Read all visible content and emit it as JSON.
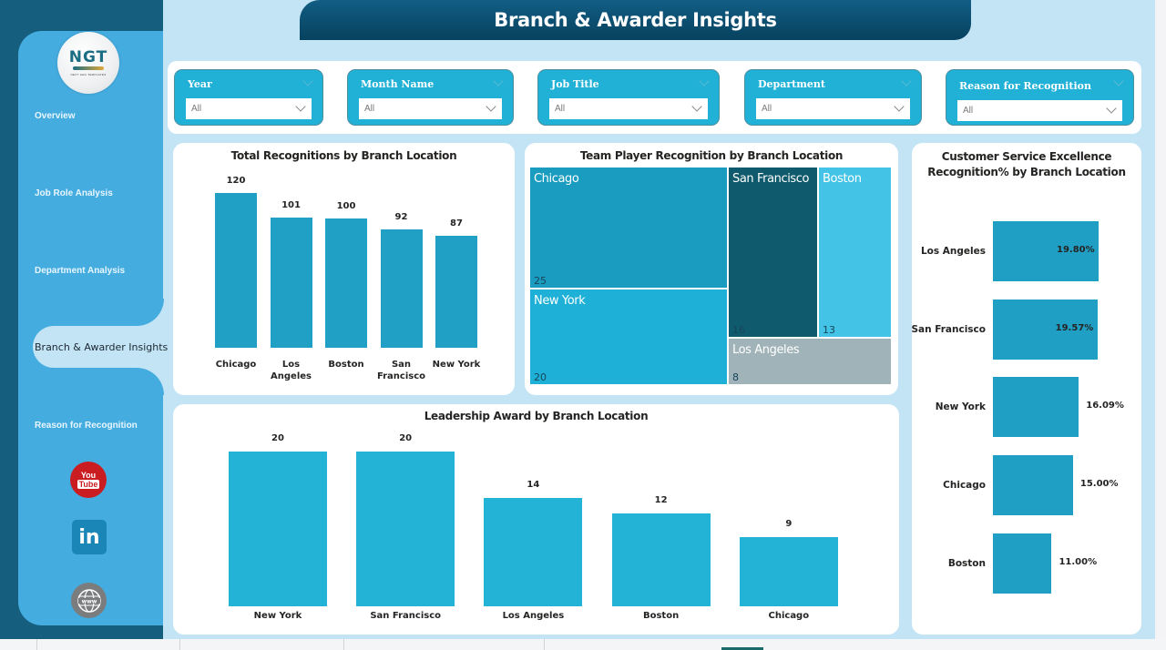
{
  "header": {
    "title": "Branch & Awarder Insights"
  },
  "sidebar": {
    "logo": {
      "text": "NGT",
      "tagline": "NEXT GEN TEMPLATES"
    },
    "items": [
      {
        "label": "Overview",
        "active": false
      },
      {
        "label": "Job Role Analysis",
        "active": false
      },
      {
        "label": "Department Analysis",
        "active": false
      },
      {
        "label": "Branch & Awarder Insights",
        "active": true
      },
      {
        "label": "Reason for Recognition",
        "active": false
      }
    ],
    "social": [
      {
        "icon": "youtube-icon",
        "top": "You",
        "bottom": "Tube"
      },
      {
        "icon": "linkedin-icon",
        "text": "in"
      },
      {
        "icon": "globe-www-icon",
        "text": "www"
      }
    ]
  },
  "filters": [
    {
      "label": "Year",
      "value": "All"
    },
    {
      "label": "Month Name",
      "value": "All"
    },
    {
      "label": "Job Title",
      "value": "All"
    },
    {
      "label": "Department",
      "value": "All"
    },
    {
      "label": "Reason for Recognition",
      "value": "All"
    }
  ],
  "colors": {
    "sidebar_dark": "#155e7e",
    "sidebar_panel": "#45ace0",
    "background": "#c3e4f4",
    "header": "#0a4a6b",
    "slicer": "#22b1d6",
    "bar": "#1fa0c4"
  },
  "chart_data": [
    {
      "id": "total_recognitions",
      "type": "bar",
      "title": "Total Recognitions by Branch Location",
      "categories": [
        "Chicago",
        "Los Angeles",
        "Boston",
        "San Francisco",
        "New York"
      ],
      "category_lines": [
        [
          "Chicago"
        ],
        [
          "Los",
          "Angeles"
        ],
        [
          "Boston"
        ],
        [
          "San",
          "Francisco"
        ],
        [
          "New York"
        ]
      ],
      "values": [
        120,
        101,
        100,
        92,
        87
      ],
      "xlabel": "",
      "ylabel": "",
      "grid": false,
      "data_labels": true
    },
    {
      "id": "team_player",
      "type": "treemap",
      "title": "Team Player Recognition by Branch Location",
      "categories": [
        "Chicago",
        "New York",
        "San Francisco",
        "Boston",
        "Los Angeles"
      ],
      "values": [
        25,
        20,
        16,
        13,
        8
      ],
      "colors": [
        "#1a9cc1",
        "#1eb0d6",
        "#0f5b6d",
        "#43c3e5",
        "#a0b3b8"
      ]
    },
    {
      "id": "customer_service_pct",
      "type": "bar",
      "orientation": "horizontal",
      "title": "Customer Service Excellence Recognition% by Branch Location",
      "title_lines": [
        "Customer Service Excellence",
        "Recognition% by Branch Location"
      ],
      "categories": [
        "Los Angeles",
        "San Francisco",
        "New York",
        "Chicago",
        "Boston"
      ],
      "values": [
        19.8,
        19.57,
        16.09,
        15.0,
        11.0
      ],
      "labels": [
        "19.80%",
        "19.57%",
        "16.09%",
        "15.00%",
        "11.00%"
      ],
      "unit": "%"
    },
    {
      "id": "leadership_award",
      "type": "bar",
      "title": "Leadership Award by Branch Location",
      "categories": [
        "New York",
        "San Francisco",
        "Los Angeles",
        "Boston",
        "Chicago"
      ],
      "values": [
        20,
        20,
        14,
        12,
        9
      ],
      "xlabel": "",
      "ylabel": "",
      "grid": false,
      "data_labels": true
    }
  ]
}
